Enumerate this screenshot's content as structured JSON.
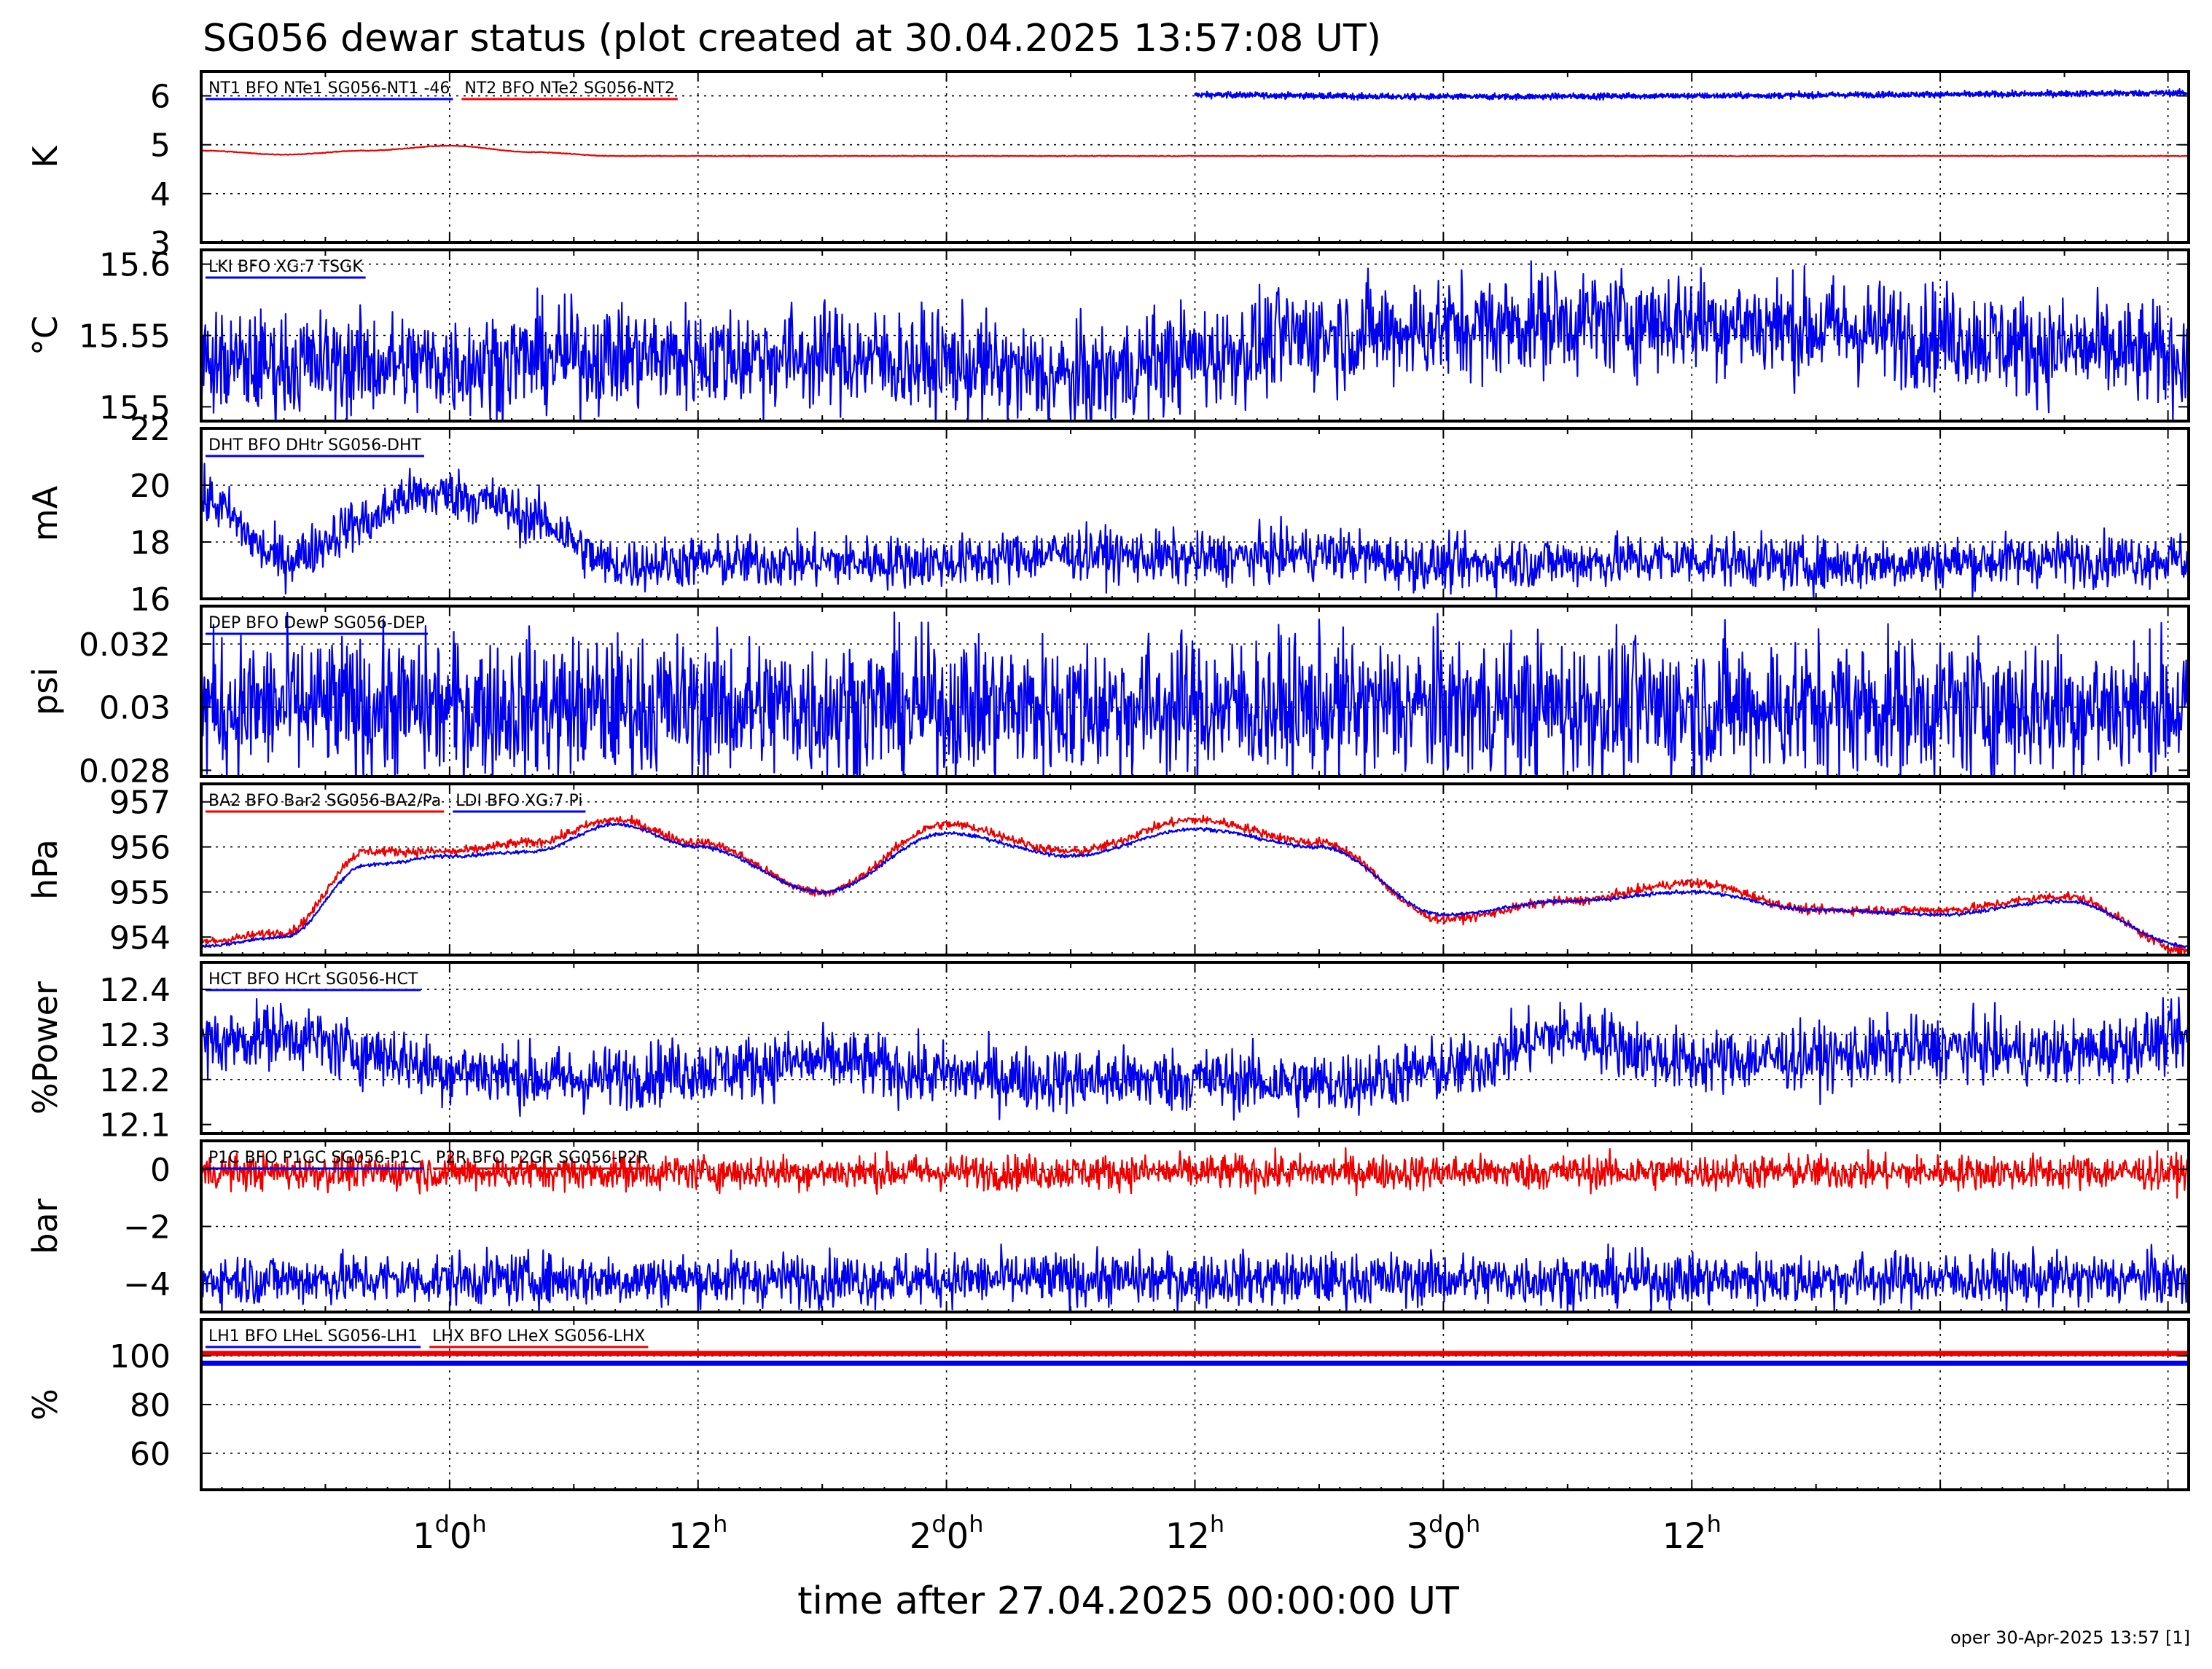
{
  "title": "SG056 dewar status (plot created at 30.04.2025 13:57:08 UT)",
  "footer": "oper 30-Apr-2025 13:57 [1]",
  "colors": {
    "blue": "#0000ee",
    "red": "#ee0000"
  },
  "chart_data": [
    {
      "type": "line",
      "ylabel": "K",
      "ylim": [
        3,
        6.5
      ],
      "yticks": [
        3,
        4,
        5,
        6
      ],
      "ytick_labels": [
        "3",
        "4",
        "5",
        "6"
      ],
      "ygrid": [
        4,
        5,
        6
      ],
      "series": [
        {
          "name": "NT1 BFO NTe1 SG056-NT1 -46",
          "color": "blue",
          "start_h": 36,
          "x": [
            36,
            48,
            60,
            72,
            84
          ],
          "y": [
            6.02,
            5.98,
            6.0,
            6.03,
            6.06
          ],
          "noise": 0.03
        },
        {
          "name": "NT2 BFO NTe2 SG056-NT2",
          "color": "red",
          "x": [
            -12,
            -8,
            -4,
            0,
            4,
            8,
            12,
            20,
            36,
            48,
            60,
            72,
            84
          ],
          "y": [
            4.88,
            4.8,
            4.88,
            4.98,
            4.85,
            4.77,
            4.77,
            4.77,
            4.77,
            4.77,
            4.77,
            4.77,
            4.77
          ],
          "noise": 0.004
        }
      ]
    },
    {
      "type": "line",
      "ylabel": "°C",
      "ylim": [
        15.49,
        15.61
      ],
      "yticks": [
        15.5,
        15.55,
        15.6
      ],
      "ytick_labels": [
        "15.5",
        "15.55",
        "15.6"
      ],
      "ygrid": [
        15.55,
        15.6
      ],
      "series": [
        {
          "name": "LKI BFO XG:7 TSGK",
          "color": "blue",
          "x": [
            -12,
            0,
            6,
            12,
            18,
            24,
            30,
            36,
            42,
            48,
            54,
            60,
            66,
            72,
            78,
            84
          ],
          "y": [
            15.53,
            15.53,
            15.535,
            15.535,
            15.535,
            15.53,
            15.52,
            15.535,
            15.55,
            15.555,
            15.56,
            15.56,
            15.555,
            15.55,
            15.54,
            15.535
          ],
          "noise": 0.018
        }
      ]
    },
    {
      "type": "line",
      "ylabel": "mA",
      "ylim": [
        16,
        22
      ],
      "yticks": [
        16,
        18,
        20,
        22
      ],
      "ytick_labels": [
        "16",
        "18",
        "20",
        "22"
      ],
      "ygrid": [
        18,
        20
      ],
      "series": [
        {
          "name": "DHT BFO DHtr SG056-DHT",
          "color": "blue",
          "x": [
            -12,
            -8,
            -4,
            -2,
            0,
            2,
            4,
            8,
            12,
            24,
            30,
            36,
            42,
            48,
            54,
            60,
            66,
            72,
            78,
            84
          ],
          "y": [
            19.5,
            17.4,
            18.7,
            19.6,
            19.7,
            19.4,
            18.8,
            17.2,
            17.3,
            17.3,
            17.6,
            17.4,
            17.6,
            17.2,
            17.3,
            17.4,
            17.2,
            17.3,
            17.4,
            17.4
          ],
          "noise": 0.45
        }
      ]
    },
    {
      "type": "line",
      "ylabel": "psi",
      "ylim": [
        0.0278,
        0.0332
      ],
      "yticks": [
        0.028,
        0.03,
        0.032
      ],
      "ytick_labels": [
        "0.028",
        "0.03",
        "0.032"
      ],
      "ygrid": [
        0.03,
        0.032
      ],
      "series": [
        {
          "name": "DEP BFO DewP SG056-DEP",
          "color": "blue",
          "x": [
            -12,
            84
          ],
          "y": [
            0.03,
            0.03
          ],
          "noise": 0.0011
        }
      ]
    },
    {
      "type": "line",
      "ylabel": "hPa",
      "ylim": [
        953.6,
        957.4
      ],
      "yticks": [
        954,
        955,
        956,
        957
      ],
      "ytick_labels": [
        "954",
        "955",
        "956",
        "957"
      ],
      "ygrid": [
        955,
        956,
        957
      ],
      "series": [
        {
          "name": "BA2 BFO Bar2 SG056-BA2/Pa",
          "color": "red",
          "x": [
            -12,
            -8,
            -4,
            0,
            4,
            8,
            12,
            18,
            24,
            30,
            36,
            42,
            48,
            54,
            60,
            66,
            72,
            78,
            84
          ],
          "y": [
            953.9,
            954.1,
            955.9,
            955.9,
            956.1,
            956.6,
            956.1,
            955.0,
            956.5,
            955.9,
            956.6,
            956.1,
            954.4,
            954.8,
            955.2,
            954.6,
            954.6,
            954.9,
            953.7
          ],
          "noise": 0.05
        },
        {
          "name": "LDI BFO XG:7 Pi",
          "color": "blue",
          "x": [
            -12,
            -8,
            -4,
            0,
            4,
            8,
            12,
            18,
            24,
            30,
            36,
            42,
            48,
            54,
            60,
            66,
            72,
            78,
            84
          ],
          "y": [
            953.8,
            954.0,
            955.6,
            955.8,
            955.9,
            956.5,
            956.0,
            955.0,
            956.3,
            955.8,
            956.4,
            956.0,
            954.5,
            954.8,
            955.0,
            954.6,
            954.5,
            954.8,
            953.8
          ],
          "noise": 0.02
        }
      ]
    },
    {
      "type": "line",
      "ylabel": "%Power",
      "ylim": [
        12.08,
        12.46
      ],
      "yticks": [
        12.1,
        12.2,
        12.3,
        12.4
      ],
      "ytick_labels": [
        "12.1",
        "12.2",
        "12.3",
        "12.4"
      ],
      "ygrid": [
        12.2,
        12.3,
        12.4
      ],
      "series": [
        {
          "name": "HCT BFO HCrt SG056-HCT",
          "color": "blue",
          "x": [
            -12,
            -8,
            -4,
            0,
            6,
            12,
            18,
            24,
            30,
            36,
            42,
            48,
            54,
            60,
            66,
            72,
            78,
            84
          ],
          "y": [
            12.28,
            12.3,
            12.26,
            12.22,
            12.2,
            12.22,
            12.24,
            12.21,
            12.2,
            12.2,
            12.19,
            12.22,
            12.3,
            12.24,
            12.25,
            12.27,
            12.26,
            12.29
          ],
          "noise": 0.035
        }
      ]
    },
    {
      "type": "line",
      "ylabel": "bar",
      "ylim": [
        -5,
        1
      ],
      "yticks": [
        -4,
        -2,
        0
      ],
      "ytick_labels": [
        "−4",
        "−2",
        "0"
      ],
      "ygrid": [
        -2,
        0
      ],
      "series": [
        {
          "name": "P1C BFO P1GC SG056-P1C",
          "color": "blue",
          "x": [
            -12,
            84
          ],
          "y": [
            -3.85,
            -3.85
          ],
          "noise": 0.45
        },
        {
          "name": "P2R BFO P2GR SG056-P2R",
          "color": "red",
          "x": [
            -12,
            84
          ],
          "y": [
            -0.1,
            -0.1
          ],
          "noise": 0.3
        }
      ]
    },
    {
      "type": "line",
      "ylabel": "%",
      "ylim": [
        45,
        115
      ],
      "yticks": [
        60,
        80,
        100
      ],
      "ytick_labels": [
        "60",
        "80",
        "100"
      ],
      "ygrid": [
        60,
        80,
        100
      ],
      "series": [
        {
          "name": "LH1 BFO LHeL SG056-LH1",
          "color": "blue",
          "x": [
            -12,
            84
          ],
          "y": [
            97,
            97
          ],
          "noise": 0
        },
        {
          "name": "LHX BFO LHeX SG056-LHX",
          "color": "red",
          "x": [
            -12,
            84
          ],
          "y": [
            101,
            101
          ],
          "noise": 0
        }
      ]
    }
  ],
  "xaxis": {
    "label": "time after 27.04.2025 00:00:00 UT",
    "xlim": [
      -12,
      84
    ],
    "grid_x": [
      0,
      12,
      24,
      36,
      48,
      60,
      72,
      83
    ],
    "minor_x": [
      -6,
      6,
      18,
      30,
      42,
      54,
      66,
      78
    ],
    "ticks": [
      {
        "x": 0,
        "day": "1",
        "h": "0",
        "sup_d": "d",
        "sup_h": "h"
      },
      {
        "x": 12,
        "day": "",
        "h": "12",
        "sup_d": "",
        "sup_h": "h"
      },
      {
        "x": 24,
        "day": "2",
        "h": "0",
        "sup_d": "d",
        "sup_h": "h"
      },
      {
        "x": 36,
        "day": "",
        "h": "12",
        "sup_d": "",
        "sup_h": "h"
      },
      {
        "x": 48,
        "day": "3",
        "h": "0",
        "sup_d": "d",
        "sup_h": "h"
      },
      {
        "x": 60,
        "day": "",
        "h": "12",
        "sup_d": "",
        "sup_h": "h"
      }
    ]
  }
}
